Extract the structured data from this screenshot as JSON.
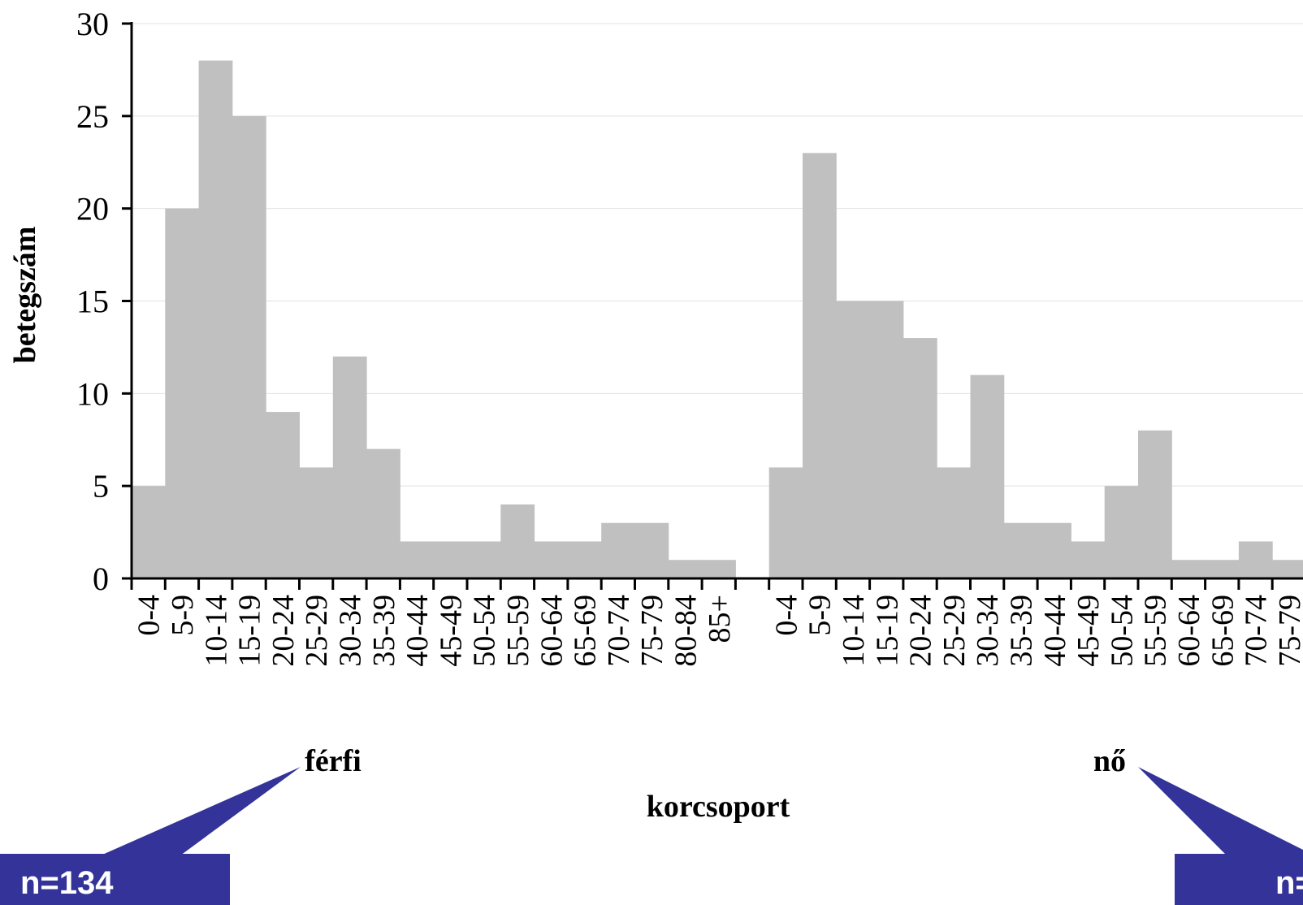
{
  "chart_data": {
    "type": "bar",
    "ylabel": "betegszám",
    "xlabel": "korcsoport",
    "ylim": [
      0,
      30
    ],
    "yticks": [
      "0",
      "5",
      "10",
      "15",
      "20",
      "25",
      "30"
    ],
    "grid": true,
    "bar_color": "#c0c0c0",
    "groups": [
      {
        "name": "férfi",
        "categories": [
          "0-4",
          "5-9",
          "10-14",
          "15-19",
          "20-24",
          "25-29",
          "30-34",
          "35-39",
          "40-44",
          "45-49",
          "50-54",
          "55-59",
          "60-64",
          "65-69",
          "70-74",
          "75-79",
          "80-84",
          "85+"
        ],
        "values": [
          5,
          20,
          28,
          25,
          9,
          6,
          12,
          7,
          2,
          2,
          2,
          4,
          2,
          2,
          3,
          3,
          1,
          1
        ]
      },
      {
        "name": "nő",
        "categories": [
          "0-4",
          "5-9",
          "10-14",
          "15-19",
          "20-24",
          "25-29",
          "30-34",
          "35-39",
          "40-44",
          "45-49",
          "50-54",
          "55-59",
          "60-64",
          "65-69",
          "70-74",
          "75-79"
        ],
        "values": [
          6,
          23,
          15,
          15,
          13,
          6,
          11,
          3,
          3,
          2,
          5,
          8,
          1,
          1,
          2,
          1
        ]
      }
    ]
  },
  "callouts": [
    {
      "text": "n=134",
      "color": "#333399"
    },
    {
      "text": "n=",
      "color": "#333399"
    }
  ]
}
